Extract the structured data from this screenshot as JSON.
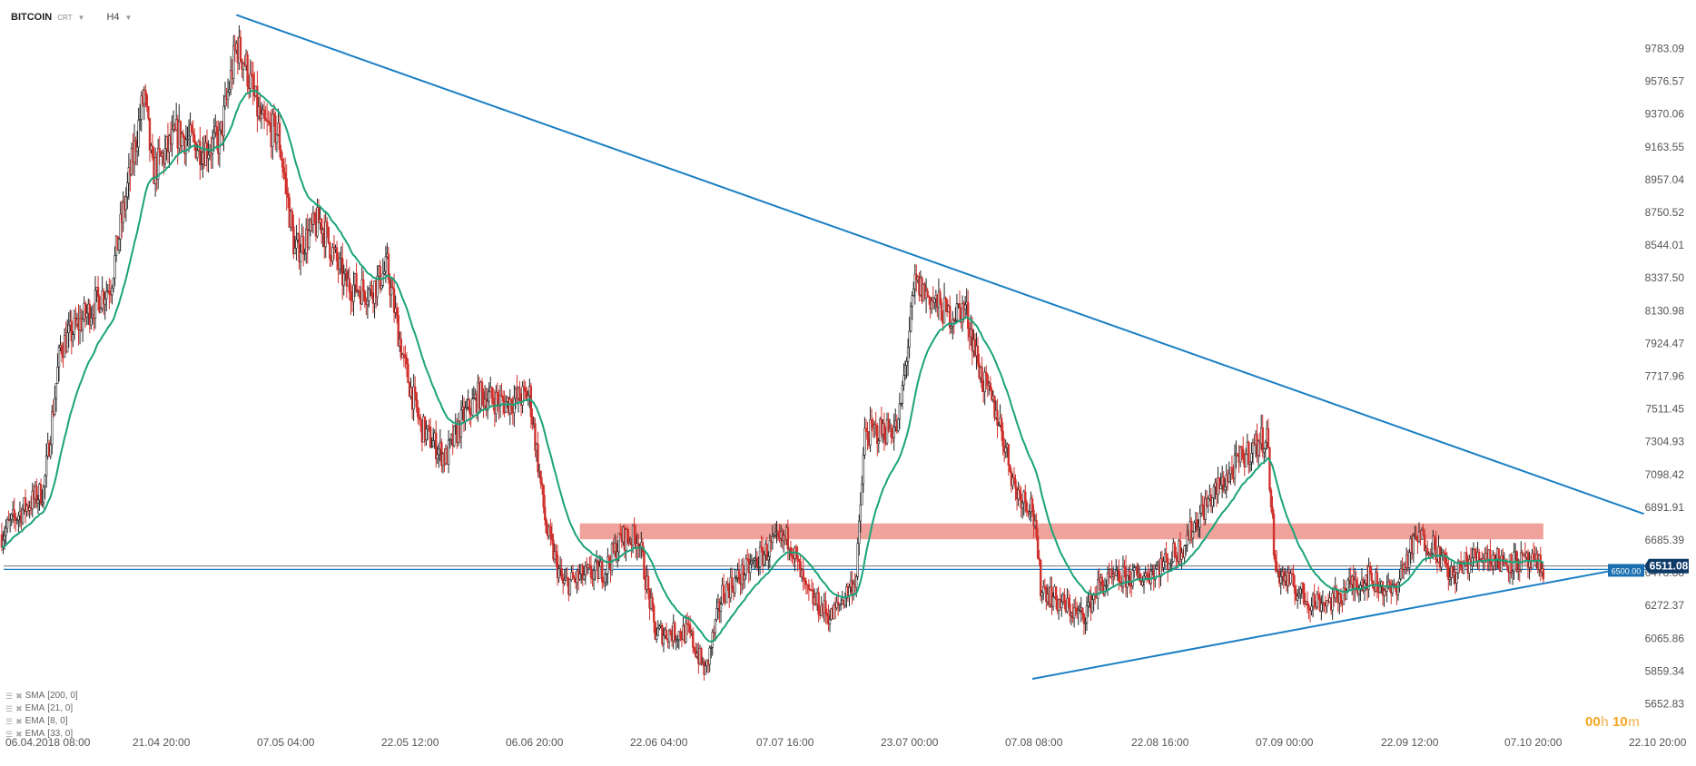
{
  "header": {
    "symbol": "BITCOIN",
    "instrument_type": "CRT",
    "timeframe": "H4"
  },
  "indicators": [
    {
      "name": "SMA",
      "params": "[200,  0]"
    },
    {
      "name": "EMA",
      "params": "[21,  0]"
    },
    {
      "name": "EMA",
      "params": "[8,  0]"
    },
    {
      "name": "EMA",
      "params": "[33,  0]"
    }
  ],
  "countdown": {
    "hours": "00",
    "h_unit": "h",
    "minutes": "10",
    "m_unit": "m"
  },
  "colors": {
    "bull": "#222222",
    "bear": "#d0312d",
    "ema": "#1aa37a",
    "trendline": "#1b7fc4",
    "zone": "#f0a39c",
    "price_tag": "#0e3a66",
    "level_tag": "#1b6fb0",
    "axis_text": "#555555"
  },
  "chart_data": {
    "type": "candlestick",
    "symbol": "BITCOIN",
    "timeframe": "H4",
    "y_axis": {
      "ticks": [
        "9783.09",
        "9576.57",
        "9370.06",
        "9163.55",
        "8957.04",
        "8750.52",
        "8544.01",
        "8337.50",
        "8130.98",
        "7924.47",
        "7717.96",
        "7511.45",
        "7304.93",
        "7098.42",
        "6891.91",
        "6685.39",
        "6478.88",
        "6272.37",
        "6065.86",
        "5859.34",
        "5652.83"
      ],
      "range": [
        5600,
        10000
      ]
    },
    "x_axis": {
      "ticks": [
        "06.04.2018  08:00",
        "21.04  20:00",
        "07.05  04:00",
        "22.05  12:00",
        "06.06  20:00",
        "22.06  04:00",
        "07.07  16:00",
        "23.07  00:00",
        "07.08  08:00",
        "22.08  16:00",
        "07.09  00:00",
        "22.09  12:00",
        "07.10  20:00",
        "22.10  20:00"
      ]
    },
    "current_price": "6511.08",
    "horizontal_levels": [
      {
        "label": "6500.00",
        "value": 6500.0
      }
    ],
    "resistance_zone": {
      "from": 6690,
      "to": 6790,
      "start": "14.06",
      "end": "07.10"
    },
    "trendlines": [
      {
        "name": "",
        "from": {
          "date": "04.05",
          "price": 9995
        },
        "to": {
          "date": "19.10",
          "price": 6850
        }
      },
      {
        "name": "",
        "from": {
          "date": "07.08",
          "price": 5810
        },
        "to": {
          "date": "16.10",
          "price": 6500
        }
      }
    ],
    "price_waypoints": [
      [
        "06.04",
        6720
      ],
      [
        "08.04",
        6850
      ],
      [
        "11.04",
        7000
      ],
      [
        "13.04",
        7900
      ],
      [
        "16.04",
        8100
      ],
      [
        "19.04",
        8300
      ],
      [
        "21.04",
        8900
      ],
      [
        "23.04",
        9500
      ],
      [
        "24.04",
        9000
      ],
      [
        "27.04",
        9250
      ],
      [
        "30.04",
        9150
      ],
      [
        "02.05",
        9200
      ],
      [
        "04.05",
        9800
      ],
      [
        "05.05",
        9700
      ],
      [
        "07.05",
        9300
      ],
      [
        "09.05",
        9250
      ],
      [
        "11.05",
        8500
      ],
      [
        "14.05",
        8700
      ],
      [
        "17.05",
        8300
      ],
      [
        "20.05",
        8250
      ],
      [
        "22.05",
        8400
      ],
      [
        "24.05",
        7800
      ],
      [
        "26.05",
        7400
      ],
      [
        "29.05",
        7200
      ],
      [
        "31.05",
        7450
      ],
      [
        "02.06",
        7600
      ],
      [
        "05.06",
        7550
      ],
      [
        "08.06",
        7600
      ],
      [
        "10.06",
        6750
      ],
      [
        "12.06",
        6400
      ],
      [
        "14.06",
        6450
      ],
      [
        "17.06",
        6500
      ],
      [
        "19.06",
        6700
      ],
      [
        "21.06",
        6700
      ],
      [
        "23.06",
        6100
      ],
      [
        "25.06",
        6100
      ],
      [
        "27.06",
        6100
      ],
      [
        "29.06",
        5850
      ],
      [
        "01.07",
        6350
      ],
      [
        "04.07",
        6500
      ],
      [
        "07.07",
        6650
      ],
      [
        "09.07",
        6700
      ],
      [
        "11.07",
        6350
      ],
      [
        "14.07",
        6200
      ],
      [
        "17.07",
        6450
      ],
      [
        "18.07",
        7350
      ],
      [
        "22.07",
        7400
      ],
      [
        "24.07",
        8300
      ],
      [
        "26.07",
        8200
      ],
      [
        "28.07",
        8100
      ],
      [
        "30.07",
        8150
      ],
      [
        "01.08",
        7700
      ],
      [
        "03.08",
        7450
      ],
      [
        "05.08",
        7000
      ],
      [
        "07.08",
        6900
      ],
      [
        "08.08",
        6400
      ],
      [
        "10.08",
        6300
      ],
      [
        "13.08",
        6200
      ],
      [
        "15.08",
        6400
      ],
      [
        "18.08",
        6450
      ],
      [
        "20.08",
        6450
      ],
      [
        "23.08",
        6550
      ],
      [
        "25.08",
        6650
      ],
      [
        "27.08",
        6850
      ],
      [
        "29.08",
        7000
      ],
      [
        "01.09",
        7200
      ],
      [
        "04.09",
        7350
      ],
      [
        "05.09",
        6500
      ],
      [
        "07.09",
        6400
      ],
      [
        "09.09",
        6300
      ],
      [
        "12.09",
        6300
      ],
      [
        "14.09",
        6400
      ],
      [
        "16.09",
        6450
      ],
      [
        "19.09",
        6350
      ],
      [
        "21.09",
        6600
      ],
      [
        "22.09",
        6700
      ],
      [
        "24.09",
        6650
      ],
      [
        "26.09",
        6450
      ],
      [
        "28.09",
        6550
      ],
      [
        "30.09",
        6600
      ],
      [
        "02.10",
        6550
      ],
      [
        "04.10",
        6550
      ],
      [
        "06.10",
        6520
      ],
      [
        "07.10",
        6511
      ]
    ]
  }
}
